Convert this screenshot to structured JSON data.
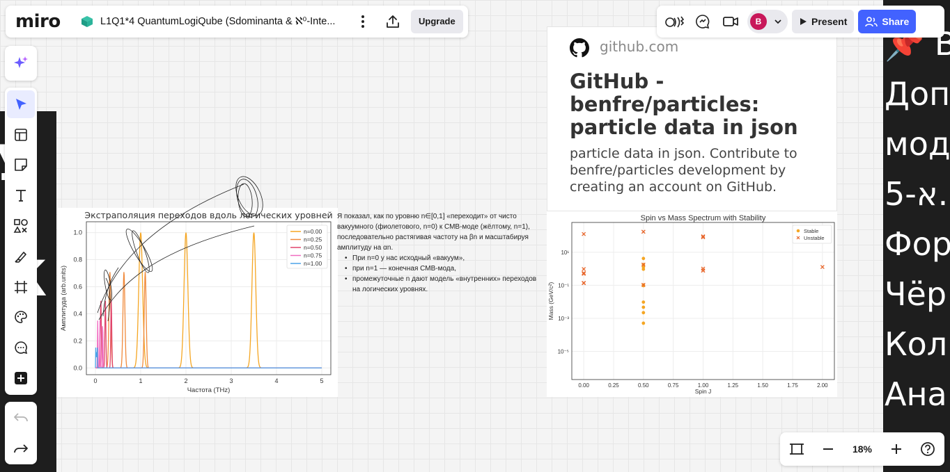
{
  "app": {
    "logo_text": "miro",
    "board_title": "L1Q1*4 QuantumLogiQube (Sdominanta & ℵ⁰-Inte...",
    "upgrade_label": "Upgrade",
    "present_label": "Present",
    "share_label": "Share",
    "avatar_initial": "B",
    "brand_color": "#4262ff",
    "zoom_level": "18%"
  },
  "icons": {
    "topbar": [
      "board-icon",
      "more-icon",
      "export-icon"
    ],
    "topright": [
      "reactions-icon",
      "comments-icon",
      "video-icon",
      "chevron-down-icon",
      "play-icon",
      "share-users-icon"
    ],
    "left_toolbar": [
      "ai-sparkle-icon",
      "select-cursor-icon",
      "templates-icon",
      "sticky-note-icon",
      "text-icon",
      "shapes-icon",
      "pen-icon",
      "frame-icon",
      "palette-icon",
      "comment-icon",
      "add-more-icon",
      "undo-icon",
      "redo-icon"
    ],
    "zoom": [
      "fit-screen-icon",
      "zoom-out-icon",
      "zoom-in-icon",
      "help-icon"
    ]
  },
  "link_card": {
    "domain": "github.com",
    "title": "GitHub - benfre/particles: particle data in json",
    "description": "particle data in json. Contribute to benfre/particles development by creating an account on GitHub."
  },
  "note": {
    "paragraph": "Я показал, как по уровню n∈[0,1] «переходит» от чисто вакуумного (фиолетового, n=0) к СМВ-моде (жёлтому, n=1), последовательно растягивая частоту на βn и масштабируя амплитуду на αn.",
    "bullets": [
      "При n=0 у нас исходный «вакуум»,",
      "при n=1 — конечная СМВ-мода,",
      "промежуточные n дают модель «внутренних» переходов на логических уровнях."
    ]
  },
  "right_frame_lines": [
    "📌 В",
    " Доп",
    "мод",
    "א-5.",
    "Фор",
    "Чёр",
    " Кол",
    "Ана"
  ],
  "chart_data": [
    {
      "type": "line",
      "title": "Экстраполяция переходов вдоль логических уровней",
      "xlabel": "Частота (THz)",
      "ylabel": "Амплитуда (arb.units)",
      "xlim": [
        -0.2,
        5.2
      ],
      "ylim": [
        -0.05,
        1.08
      ],
      "xticks": [
        "0",
        "1",
        "2",
        "3",
        "4",
        "5"
      ],
      "yticks": [
        "0.0",
        "0.2",
        "0.4",
        "0.6",
        "0.8",
        "1.0"
      ],
      "legend_position": "top-right",
      "grid": true,
      "series": [
        {
          "name": "n=0.00",
          "color": "#f5a623",
          "peaks": [
            [
              1.0,
              1.0
            ],
            [
              2.0,
              1.0
            ],
            [
              3.5,
              1.0
            ]
          ],
          "width": 0.06
        },
        {
          "name": "n=0.25",
          "color": "#f08a3c",
          "peaks": [
            [
              0.32,
              0.71
            ],
            [
              0.63,
              0.71
            ],
            [
              1.1,
              0.71
            ]
          ],
          "width": 0.03
        },
        {
          "name": "n=0.50",
          "color": "#e0446a",
          "peaks": [
            [
              0.12,
              0.5
            ],
            [
              0.22,
              0.5
            ],
            [
              0.35,
              0.5
            ]
          ],
          "width": 0.015
        },
        {
          "name": "n=0.75",
          "color": "#f06bc0",
          "peaks": [
            [
              0.05,
              0.35
            ],
            [
              0.1,
              0.35
            ],
            [
              0.16,
              0.35
            ]
          ],
          "width": 0.008
        },
        {
          "name": "n=1.00",
          "color": "#4aa3e8",
          "peaks": [
            [
              0.01,
              0.25
            ],
            [
              0.025,
              0.25
            ],
            [
              0.04,
              0.25
            ]
          ],
          "width": 0.004
        }
      ]
    },
    {
      "type": "scatter",
      "title": "Spin vs Mass Spectrum with Stability",
      "xlabel": "Spin J",
      "ylabel": "Mass (GeV/c²)",
      "xlim": [
        -0.1,
        2.1
      ],
      "ylim_log10": [
        -6.7,
        2.8
      ],
      "y_scale": "log",
      "xticks": [
        "0.00",
        "0.25",
        "0.50",
        "0.75",
        "1.00",
        "1.25",
        "1.50",
        "1.75",
        "2.00"
      ],
      "yticks": [
        {
          "exp": 1,
          "label": "10¹"
        },
        {
          "exp": -1,
          "label": "10⁻¹"
        },
        {
          "exp": -3,
          "label": "10⁻³"
        },
        {
          "exp": -5,
          "label": "10⁻⁵"
        }
      ],
      "legend_position": "top-right",
      "grid": true,
      "series": [
        {
          "name": "Stable",
          "marker": "circle",
          "color": "#f5a623",
          "points": [
            [
              0.5,
              0.000511
            ],
            [
              0.5,
              0.0022
            ],
            [
              0.5,
              0.0047
            ],
            [
              0.5,
              0.0096
            ],
            [
              0.5,
              0.095
            ],
            [
              0.5,
              0.105
            ],
            [
              0.5,
              1.28
            ],
            [
              0.5,
              1.78
            ],
            [
              0.5,
              4.18
            ],
            [
              0.5,
              0.938
            ]
          ]
        },
        {
          "name": "Unstable",
          "marker": "x",
          "color": "#e8662b",
          "points": [
            [
              0,
              125.1
            ],
            [
              0,
              0.135
            ],
            [
              0,
              0.14
            ],
            [
              0,
              0.494
            ],
            [
              0,
              0.548
            ],
            [
              0,
              0.958
            ],
            [
              0.5,
              173
            ],
            [
              0.5,
              0.106
            ],
            [
              0.5,
              1.777
            ],
            [
              1,
              80.4
            ],
            [
              1,
              91.2
            ],
            [
              1,
              0.775
            ],
            [
              1,
              0.782
            ],
            [
              1,
              1.02
            ],
            [
              2,
              1.275
            ]
          ]
        }
      ]
    }
  ]
}
